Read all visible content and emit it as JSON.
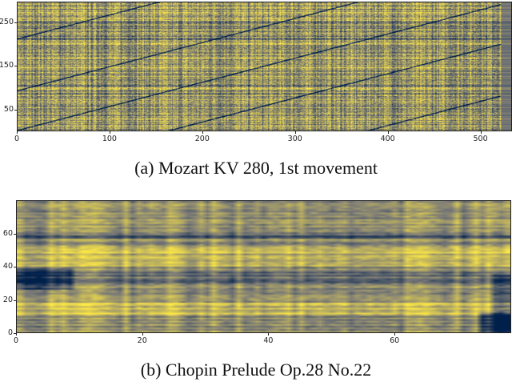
{
  "chart_data": [
    {
      "type": "heatmap",
      "caption": "(a) Mozart KV 280, 1st movement",
      "colormap": "cividis",
      "colors": {
        "low": "#00204c",
        "mid": "#7c7b78",
        "high": "#ffe945"
      },
      "xlim": [
        0,
        534
      ],
      "ylim": [
        0,
        298
      ],
      "x_ticks": [
        "0",
        "100",
        "200",
        "300",
        "400",
        "500"
      ],
      "y_ticks": [
        "50",
        "150",
        "250"
      ],
      "features": "dense self-similarity texture with dark diagonal lines"
    },
    {
      "type": "heatmap",
      "caption": "(b) Chopin Prelude Op.28 No.22",
      "colormap": "cividis",
      "colors": {
        "low": "#00204c",
        "mid": "#7c7b78",
        "high": "#ffe945"
      },
      "xlim": [
        0,
        78.5
      ],
      "ylim": [
        0,
        80
      ],
      "x_ticks": [
        "0",
        "20",
        "40",
        "60"
      ],
      "y_ticks": [
        "0",
        "20",
        "40",
        "60"
      ],
      "features": "horizontal bands; dark block near x=3,y=30; dark region at right bottom"
    }
  ]
}
